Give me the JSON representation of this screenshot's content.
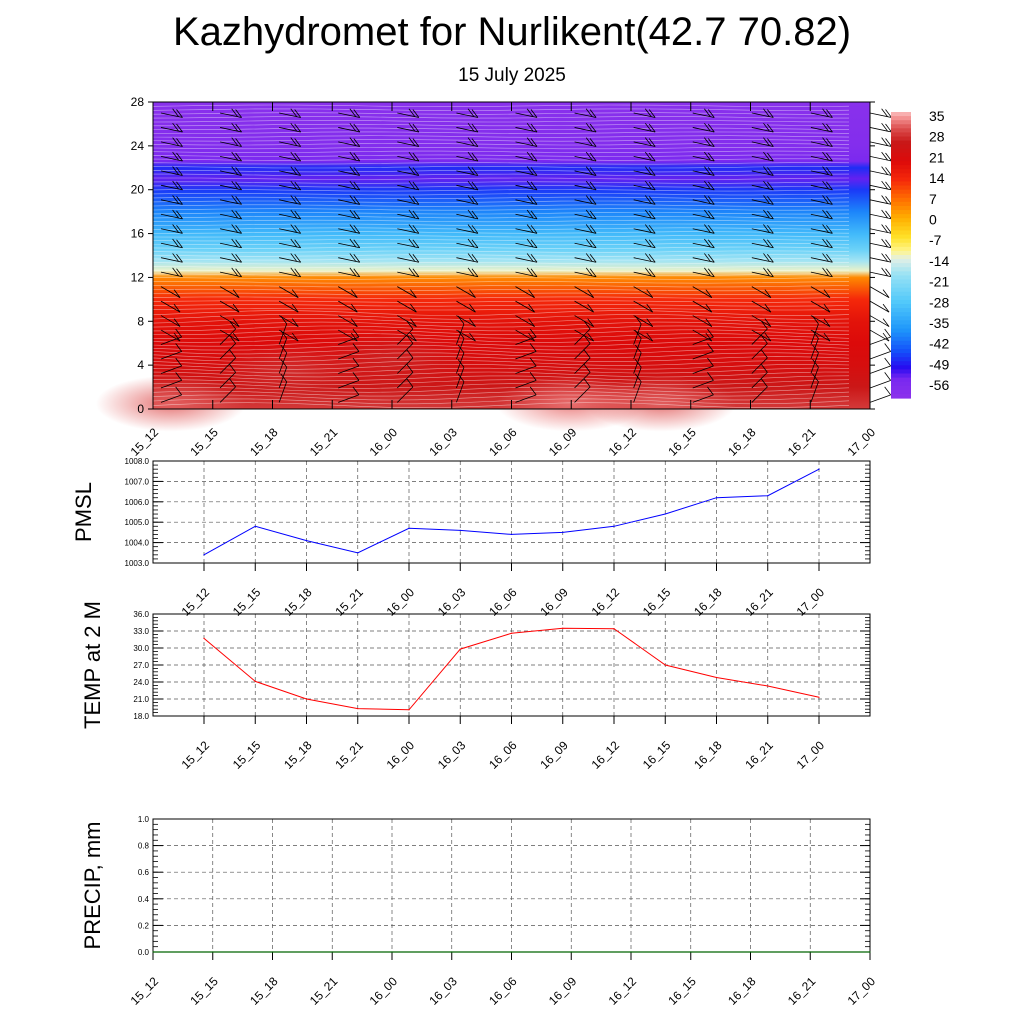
{
  "header": {
    "title": "Kazhydromet for Nurlikent(42.7 70.82)",
    "subtitle": "15 July 2025"
  },
  "colors": {
    "pmsl_line": "#0000ff",
    "temp_line": "#ff0000",
    "precip_line": "#006400",
    "grid": "#888888"
  },
  "chart_data": [
    {
      "id": "cross_section",
      "type": "heatmap",
      "x_ticks": [
        "15_12",
        "15_15",
        "15_18",
        "15_21",
        "16_00",
        "16_03",
        "16_06",
        "16_09",
        "16_12",
        "16_15",
        "16_18",
        "16_21",
        "17_00"
      ],
      "y_ticks": [
        0,
        4,
        8,
        12,
        16,
        20,
        24,
        28
      ],
      "ylim": [
        0,
        28
      ],
      "colorbar_labels": [
        "35",
        "28",
        "21",
        "14",
        "7",
        "0",
        "-7",
        "-14",
        "-21",
        "-28",
        "-35",
        "-42",
        "-49",
        "-56"
      ],
      "colorbar_range": [
        -63,
        42
      ],
      "profile": {
        "levels": [
          0,
          2,
          4,
          6,
          8,
          10,
          12,
          12.6,
          13.5,
          14.5,
          16,
          18,
          20,
          21,
          22,
          22.6,
          24,
          26,
          28
        ],
        "values": [
          34,
          30,
          26,
          24,
          22,
          17,
          7,
          -11,
          -17,
          -24,
          -31,
          -40,
          -48,
          -55,
          -49,
          -57,
          -60,
          -61,
          -62
        ]
      },
      "warm_cells": [
        {
          "x": 0.3,
          "y": 0.5,
          "value": 37
        },
        {
          "x": 7.0,
          "y": 0.5,
          "value": 38
        },
        {
          "x": 8.5,
          "y": 0.5,
          "value": 37
        },
        {
          "x": 2.3,
          "y": 3.5,
          "value": 33
        },
        {
          "x": 4.0,
          "y": 4.5,
          "value": 32
        }
      ]
    },
    {
      "id": "pmsl",
      "type": "line",
      "ylabel": "PMSL",
      "x": [
        "15_12",
        "15_15",
        "15_18",
        "15_21",
        "16_00",
        "16_03",
        "16_06",
        "16_09",
        "16_12",
        "16_15",
        "16_18",
        "16_21",
        "17_00"
      ],
      "y_ticks": [
        "1003.0",
        "1004.0",
        "1005.0",
        "1006.0",
        "1007.0",
        "1008.0"
      ],
      "ylim": [
        1003,
        1008
      ],
      "series": [
        {
          "values": [
            1003.4,
            1004.8,
            1004.1,
            1003.5,
            1004.7,
            1004.6,
            1004.4,
            1004.5,
            1004.8,
            1005.4,
            1006.2,
            1006.3,
            1007.6
          ]
        }
      ]
    },
    {
      "id": "temp",
      "type": "line",
      "ylabel": "TEMP at 2 M",
      "x": [
        "15_12",
        "15_15",
        "15_18",
        "15_21",
        "16_00",
        "16_03",
        "16_06",
        "16_09",
        "16_12",
        "16_15",
        "16_18",
        "16_21",
        "17_00"
      ],
      "y_ticks": [
        "18.0",
        "21.0",
        "24.0",
        "27.0",
        "30.0",
        "33.0",
        "36.0"
      ],
      "ylim": [
        18,
        36
      ],
      "series": [
        {
          "values": [
            31.7,
            24.1,
            21.0,
            19.3,
            19.1,
            29.8,
            32.6,
            33.5,
            33.4,
            27.0,
            24.8,
            23.3,
            21.3
          ]
        }
      ]
    },
    {
      "id": "precip",
      "type": "line",
      "ylabel": "PRECIP, mm",
      "x": [
        "15_12",
        "15_15",
        "15_18",
        "15_21",
        "16_00",
        "16_03",
        "16_06",
        "16_09",
        "16_12",
        "16_15",
        "16_18",
        "16_21",
        "17_00"
      ],
      "y_ticks": [
        "0.0",
        "0.2",
        "0.4",
        "0.6",
        "0.8",
        "1.0"
      ],
      "ylim": [
        0,
        1
      ],
      "series": [
        {
          "values": [
            0,
            0,
            0,
            0,
            0,
            0,
            0,
            0,
            0,
            0,
            0,
            0,
            0
          ]
        }
      ]
    }
  ]
}
